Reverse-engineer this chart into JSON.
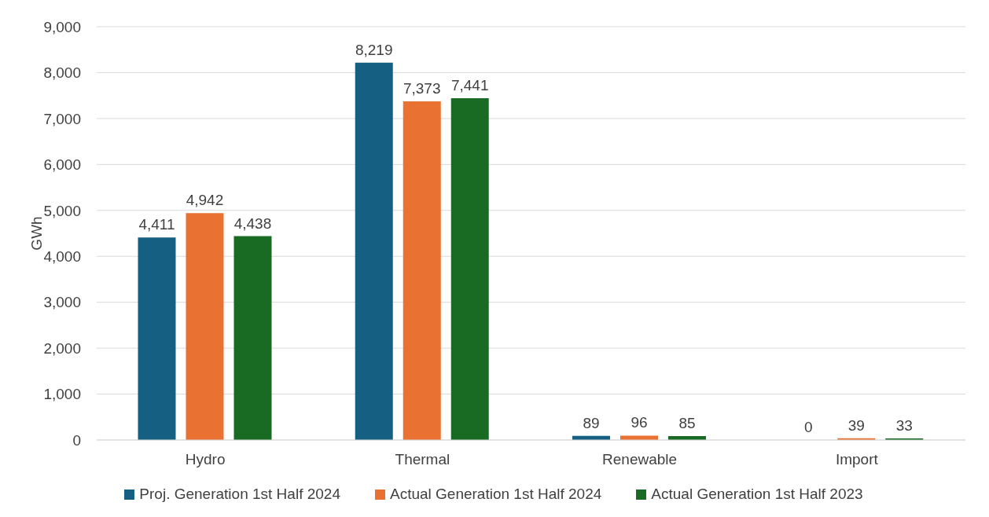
{
  "chart_data": {
    "type": "bar",
    "ylabel": "GWh",
    "categories": [
      "Hydro",
      "Thermal",
      "Renewable",
      "Import"
    ],
    "series": [
      {
        "name": "Proj. Generation 1st Half 2024",
        "color": "#156082",
        "values": [
          4411,
          8219,
          89,
          0
        ],
        "value_labels": [
          "4,411",
          "8,219",
          "89",
          "0"
        ]
      },
      {
        "name": "Actual Generation 1st Half 2024",
        "color": "#e97132",
        "values": [
          4942,
          7373,
          96,
          39
        ],
        "value_labels": [
          "4,942",
          "7,373",
          "96",
          "39"
        ]
      },
      {
        "name": "Actual Generation 1st Half 2023",
        "color": "#196b24",
        "values": [
          4438,
          7441,
          85,
          33
        ],
        "value_labels": [
          "4,438",
          "7,441",
          "85",
          "33"
        ]
      }
    ],
    "ylim": [
      0,
      9000
    ],
    "yticks": [
      0,
      {
        "value": 1000,
        "label": "1,000"
      },
      {
        "value": 2000,
        "label": "2,000"
      },
      {
        "value": 3000,
        "label": "3,000"
      },
      {
        "value": 4000,
        "label": "4,000"
      },
      {
        "value": 5000,
        "label": "5,000"
      },
      {
        "value": 6000,
        "label": "6,000"
      },
      {
        "value": 7000,
        "label": "7,000"
      },
      {
        "value": 8000,
        "label": "8,000"
      },
      {
        "value": 9000,
        "label": "9,000"
      }
    ],
    "grid": "y",
    "legend": "bottom"
  }
}
